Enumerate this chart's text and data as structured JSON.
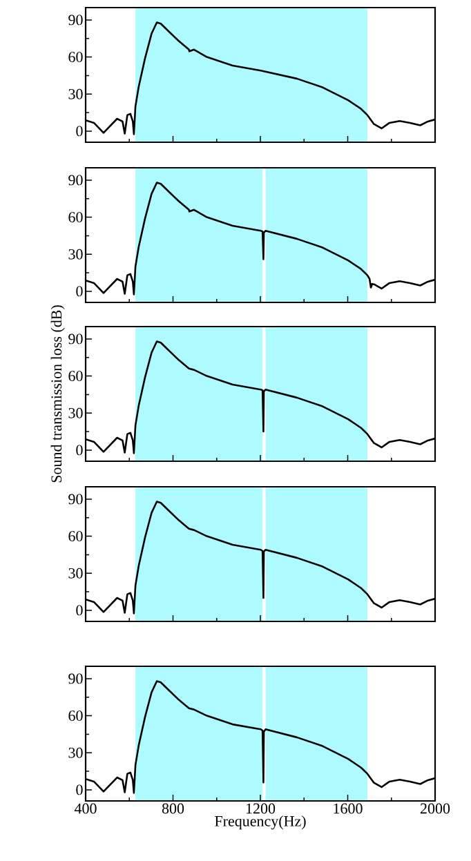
{
  "chart_data": [
    {
      "type": "line",
      "color": "#000000",
      "xlim": [
        400,
        2000
      ],
      "ylim": [
        -9,
        100
      ],
      "xticks": [
        400,
        800,
        1200,
        1600,
        2000
      ],
      "yticks": [
        0,
        30,
        60,
        90
      ],
      "tick_labels": "y",
      "bands": [
        {
          "axis": "x",
          "from": 628,
          "to": 1690,
          "color": "#aefbff"
        }
      ],
      "x": [
        400,
        438,
        482,
        544,
        569,
        579,
        591,
        605,
        616,
        621,
        628,
        643,
        672,
        702,
        726,
        744,
        779,
        826,
        873,
        875,
        896,
        955,
        1073,
        1202,
        1367,
        1485,
        1602,
        1661,
        1690,
        1720,
        1755,
        1791,
        1838,
        1885,
        1932,
        1967,
        2000
      ],
      "values": [
        8.8,
        6.7,
        -1.4,
        10,
        7.8,
        -2,
        13,
        14,
        7.8,
        -2.5,
        20,
        36,
        59,
        79,
        88,
        87,
        81,
        73,
        66,
        64.6,
        66,
        60,
        53,
        49,
        42.5,
        35.4,
        25,
        18,
        13,
        5.7,
        2.2,
        6.7,
        8.2,
        6.7,
        4.7,
        7.8,
        9.4
      ]
    },
    {
      "type": "line",
      "color": "#000000",
      "xlim": [
        400,
        2000
      ],
      "ylim": [
        -9,
        100
      ],
      "xticks": [
        400,
        800,
        1200,
        1600,
        2000
      ],
      "yticks": [
        0,
        30,
        60,
        90
      ],
      "tick_labels": "y",
      "bands": [
        {
          "axis": "x",
          "from": 628,
          "to": 1209,
          "color": "#aefbff"
        },
        {
          "axis": "x",
          "from": 1224,
          "to": 1690,
          "color": "#aefbff"
        }
      ],
      "x": [
        400,
        438,
        482,
        544,
        569,
        579,
        591,
        605,
        616,
        621,
        628,
        643,
        672,
        702,
        726,
        744,
        779,
        826,
        873,
        875,
        896,
        955,
        1073,
        1202,
        1210,
        1214,
        1216,
        1224,
        1367,
        1485,
        1602,
        1661,
        1690,
        1700,
        1706,
        1712,
        1720,
        1755,
        1791,
        1838,
        1885,
        1932,
        1967,
        2000
      ],
      "values": [
        8.8,
        6.7,
        -1.4,
        10,
        7.8,
        -2,
        13,
        14,
        7.8,
        -2.5,
        20,
        36,
        59,
        79,
        88,
        87,
        81,
        73,
        66,
        64.6,
        66,
        60,
        53,
        49,
        48.5,
        26,
        47.5,
        49,
        42.5,
        35.4,
        25,
        18,
        13,
        10,
        3,
        6,
        5.7,
        2.2,
        6.7,
        8.2,
        6.7,
        4.7,
        7.8,
        9.4
      ]
    },
    {
      "type": "line",
      "color": "#000000",
      "xlim": [
        400,
        2000
      ],
      "ylim": [
        -9,
        100
      ],
      "xticks": [
        400,
        800,
        1200,
        1600,
        2000
      ],
      "yticks": [
        0,
        30,
        60,
        90
      ],
      "tick_labels": "y",
      "ylabel": "Sound transmission loss (dB)",
      "bands": [
        {
          "axis": "x",
          "from": 628,
          "to": 1209,
          "color": "#aefbff"
        },
        {
          "axis": "x",
          "from": 1224,
          "to": 1690,
          "color": "#aefbff"
        }
      ],
      "x": [
        400,
        438,
        482,
        544,
        569,
        579,
        591,
        605,
        616,
        621,
        628,
        643,
        672,
        702,
        726,
        744,
        779,
        826,
        873,
        896,
        955,
        1073,
        1202,
        1210,
        1214,
        1216,
        1224,
        1367,
        1485,
        1602,
        1661,
        1690,
        1720,
        1755,
        1791,
        1838,
        1885,
        1932,
        1967,
        2000
      ],
      "values": [
        8.8,
        6.7,
        -1.4,
        10,
        7.8,
        -2,
        13,
        14,
        7.8,
        -2.5,
        20,
        36,
        59,
        79,
        88,
        87,
        81,
        73,
        66,
        65,
        60,
        53,
        49,
        48.5,
        15,
        47.5,
        49,
        42.5,
        35.4,
        25,
        18,
        13,
        5.7,
        2.2,
        6.7,
        8.2,
        6.7,
        4.7,
        7.8,
        9.4
      ]
    },
    {
      "type": "line",
      "color": "#000000",
      "xlim": [
        400,
        2000
      ],
      "ylim": [
        -9,
        100
      ],
      "xticks": [
        400,
        800,
        1200,
        1600,
        2000
      ],
      "yticks": [
        0,
        30,
        60,
        90
      ],
      "tick_labels": "y",
      "bands": [
        {
          "axis": "x",
          "from": 628,
          "to": 1209,
          "color": "#aefbff"
        },
        {
          "axis": "x",
          "from": 1224,
          "to": 1690,
          "color": "#aefbff"
        }
      ],
      "x": [
        400,
        438,
        482,
        544,
        569,
        579,
        591,
        605,
        616,
        621,
        628,
        643,
        672,
        702,
        726,
        744,
        779,
        826,
        873,
        896,
        955,
        1073,
        1202,
        1210,
        1214,
        1216,
        1224,
        1367,
        1485,
        1602,
        1661,
        1690,
        1720,
        1755,
        1791,
        1838,
        1885,
        1932,
        1967,
        2000
      ],
      "values": [
        8.8,
        6.7,
        -1.4,
        10,
        7.8,
        -2,
        13,
        14,
        7.8,
        -2.5,
        20,
        36,
        59,
        79,
        88,
        87,
        81,
        73,
        66,
        65,
        60,
        53,
        49,
        48,
        10,
        47.5,
        49,
        42.5,
        35.4,
        25,
        18,
        13,
        5.7,
        2.2,
        6.7,
        8.2,
        6.7,
        4.7,
        7.8,
        9.4
      ]
    },
    {
      "type": "line",
      "color": "#000000",
      "xlim": [
        400,
        2000
      ],
      "ylim": [
        -9,
        100
      ],
      "xticks": [
        400,
        800,
        1200,
        1600,
        2000
      ],
      "yticks": [
        0,
        30,
        60,
        90
      ],
      "xlabel": "Frequency(Hz)",
      "bands": [
        {
          "axis": "x",
          "from": 628,
          "to": 1209,
          "color": "#aefbff"
        },
        {
          "axis": "x",
          "from": 1224,
          "to": 1690,
          "color": "#aefbff"
        }
      ],
      "x": [
        400,
        438,
        482,
        544,
        569,
        579,
        591,
        605,
        616,
        621,
        628,
        643,
        672,
        702,
        726,
        744,
        779,
        826,
        873,
        896,
        955,
        1073,
        1202,
        1210,
        1214,
        1216,
        1224,
        1367,
        1485,
        1602,
        1661,
        1690,
        1720,
        1755,
        1791,
        1838,
        1885,
        1932,
        1967,
        2000
      ],
      "values": [
        8.8,
        6.7,
        -1.4,
        10,
        7.8,
        -2,
        13,
        14,
        7.8,
        -2.5,
        20,
        36,
        59,
        79,
        88,
        87,
        81,
        73,
        66,
        65,
        60,
        53,
        49,
        48,
        6,
        47,
        49,
        42.5,
        35.4,
        25,
        18,
        13,
        5.7,
        2.2,
        6.7,
        8.2,
        6.7,
        4.7,
        7.8,
        9.4
      ]
    }
  ]
}
